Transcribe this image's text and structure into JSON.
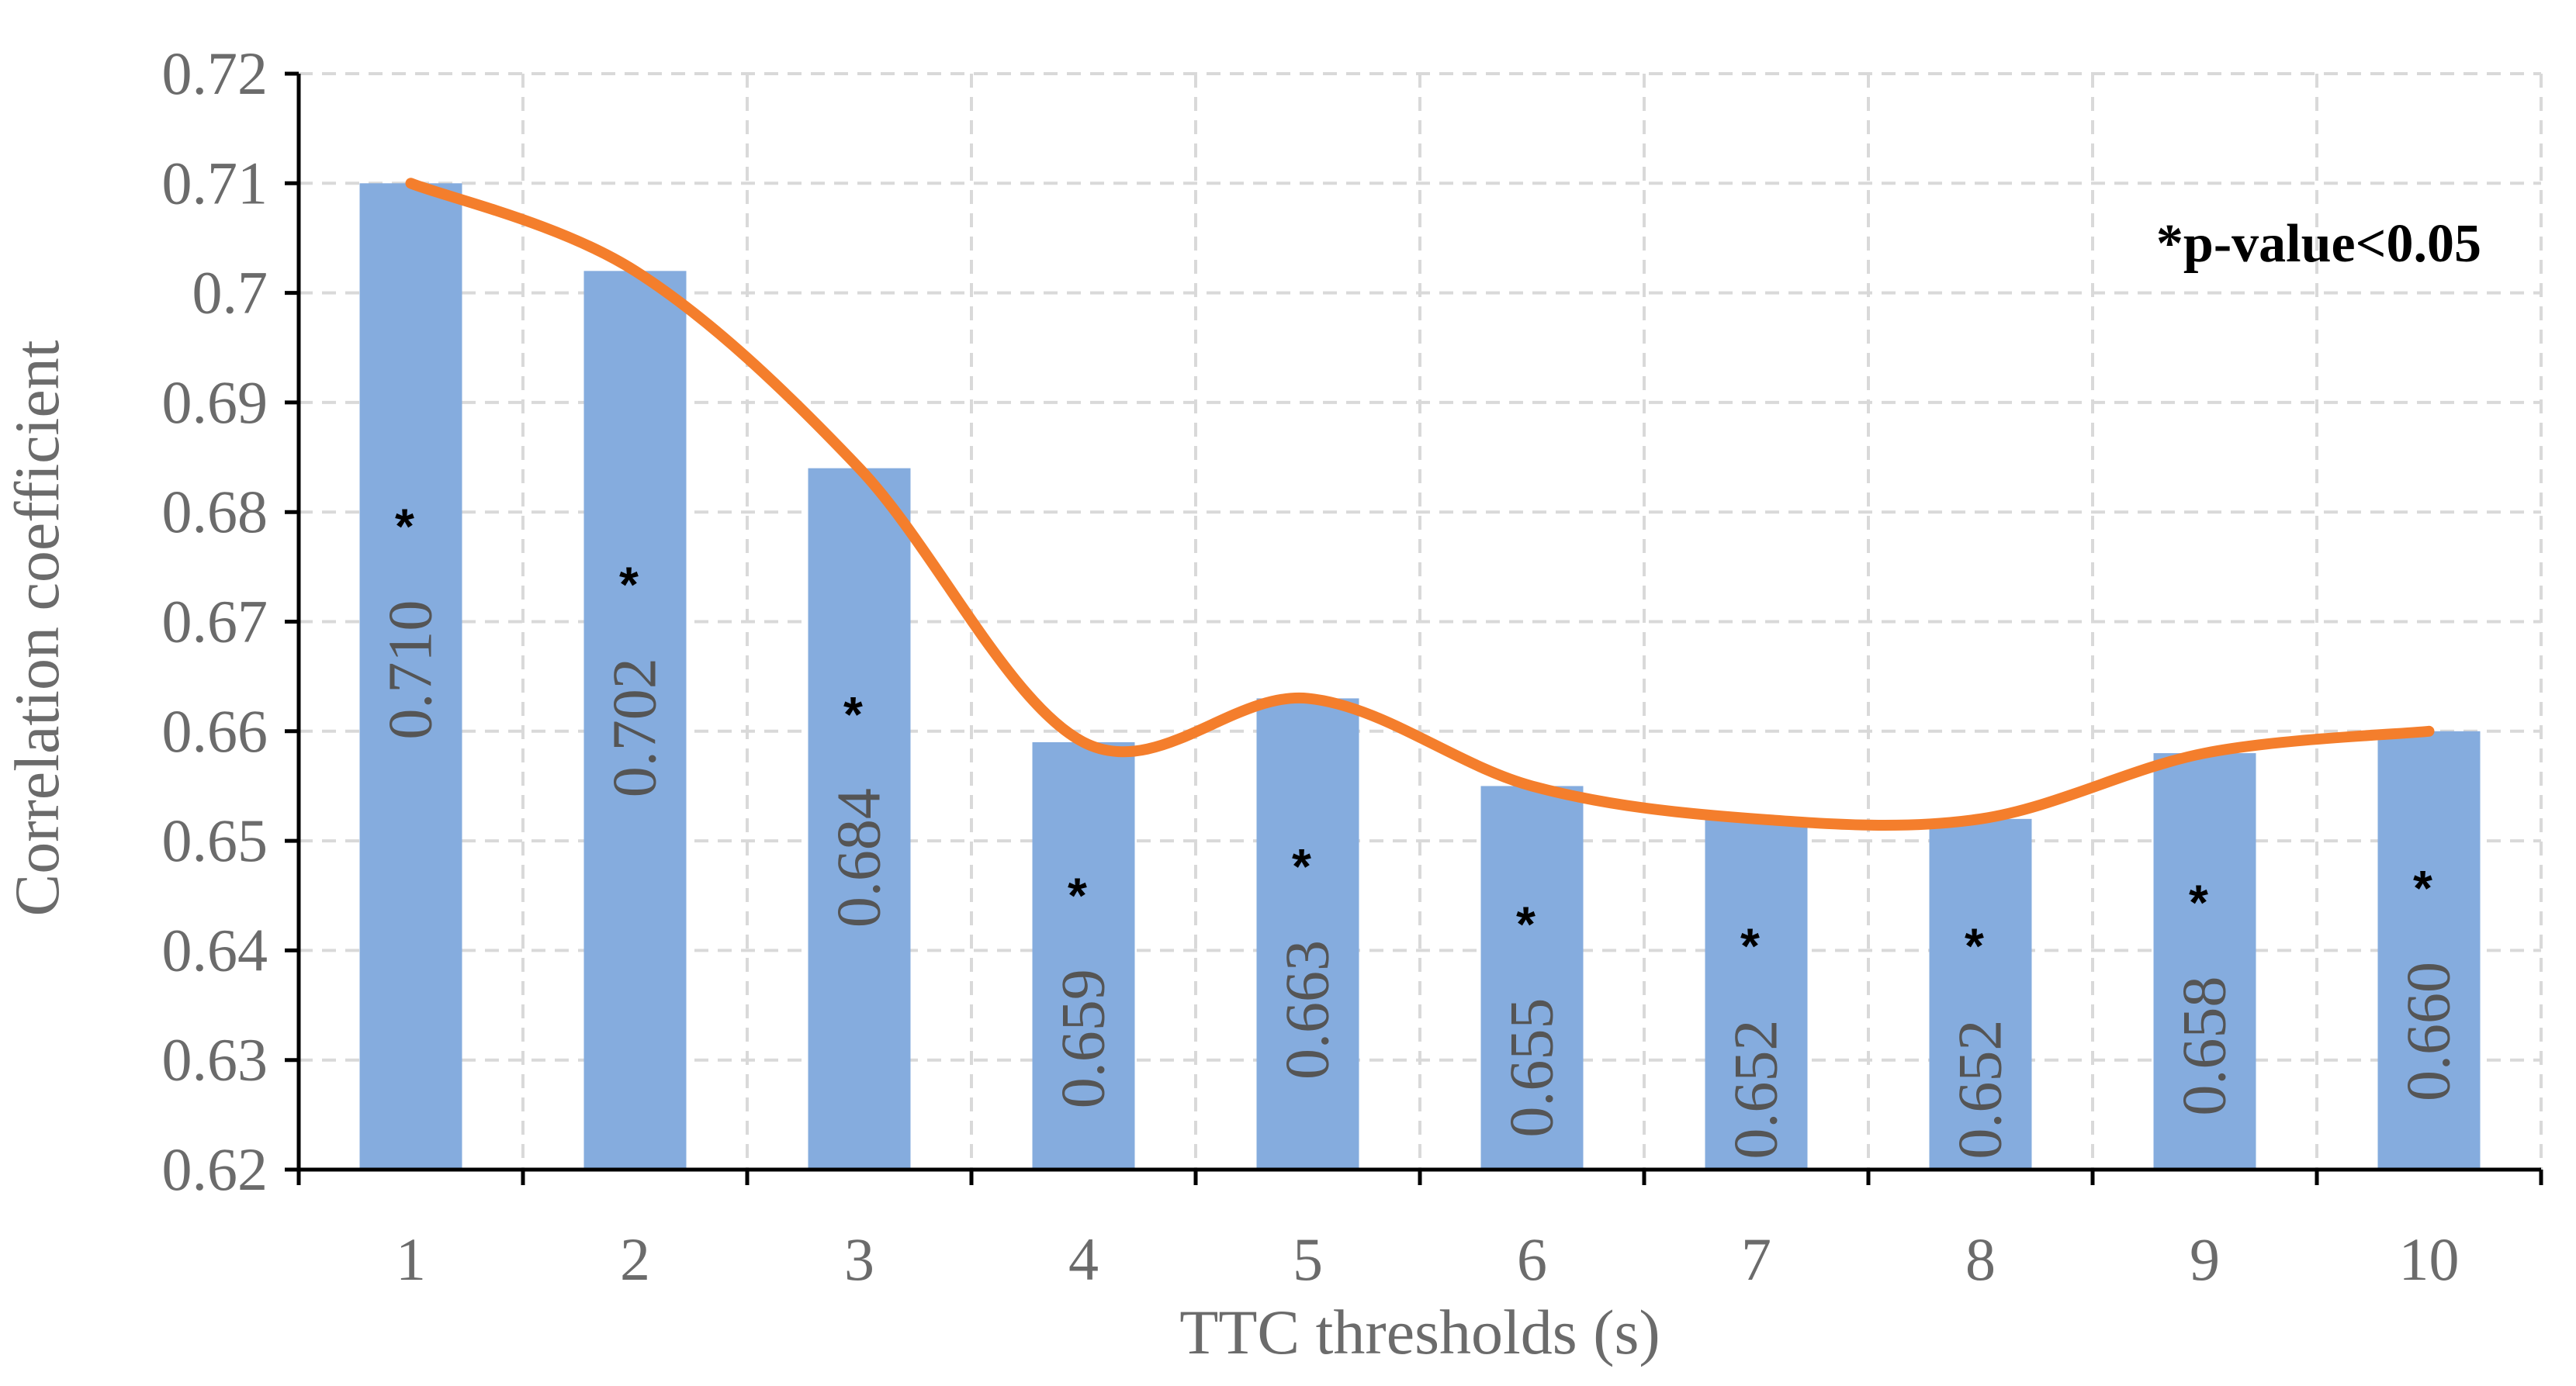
{
  "chart_data": {
    "type": "bar",
    "categories": [
      "1",
      "2",
      "3",
      "4",
      "5",
      "6",
      "7",
      "8",
      "9",
      "10"
    ],
    "values": [
      0.71,
      0.702,
      0.684,
      0.659,
      0.663,
      0.655,
      0.652,
      0.652,
      0.658,
      0.66
    ],
    "value_labels": [
      "0.710",
      "0.702",
      "0.684",
      "0.659",
      "0.663",
      "0.655",
      "0.652",
      "0.652",
      "0.658",
      "0.660"
    ],
    "significance_marker": "*",
    "annotation": "*p-value<0.05",
    "xlabel": "TTC thresholds (s)",
    "ylabel": "Correlation coefficient",
    "ylim": [
      0.62,
      0.72
    ],
    "yticks": [
      "0.62",
      "0.63",
      "0.64",
      "0.65",
      "0.66",
      "0.67",
      "0.68",
      "0.69",
      "0.7",
      "0.71",
      "0.72"
    ],
    "grid": true,
    "trend_line": "smoothed line through bar values",
    "colors": {
      "bar": "#85ACDE",
      "line": "#F47E2C",
      "grid": "#D9D9D9",
      "axis": "#000000"
    }
  }
}
